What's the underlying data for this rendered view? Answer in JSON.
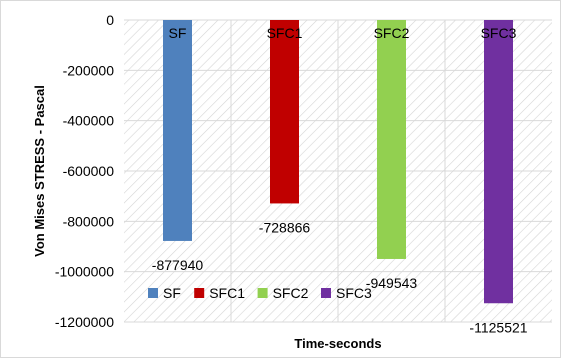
{
  "chart_data": {
    "type": "bar",
    "xlabel": "Time-seconds",
    "ylabel": "Von Mises STRESS - Pascal",
    "ylim": [
      -1200000,
      0
    ],
    "yticks": [
      0,
      -200000,
      -400000,
      -600000,
      -800000,
      -1000000,
      -1200000
    ],
    "grid": true,
    "legend_position": "bottom-left",
    "categories": [
      "SF",
      "SFC1",
      "SFC2",
      "SFC3"
    ],
    "series": [
      {
        "name": "SF",
        "value": -877940,
        "color": "#4F81BD",
        "label": "-877940"
      },
      {
        "name": "SFC1",
        "value": -728866,
        "color": "#C00000",
        "label": "-728866"
      },
      {
        "name": "SFC2",
        "value": -949543,
        "color": "#92D050",
        "label": "-949543"
      },
      {
        "name": "SFC3",
        "value": -1125521,
        "color": "#7030A0",
        "label": "-1125521"
      }
    ]
  }
}
